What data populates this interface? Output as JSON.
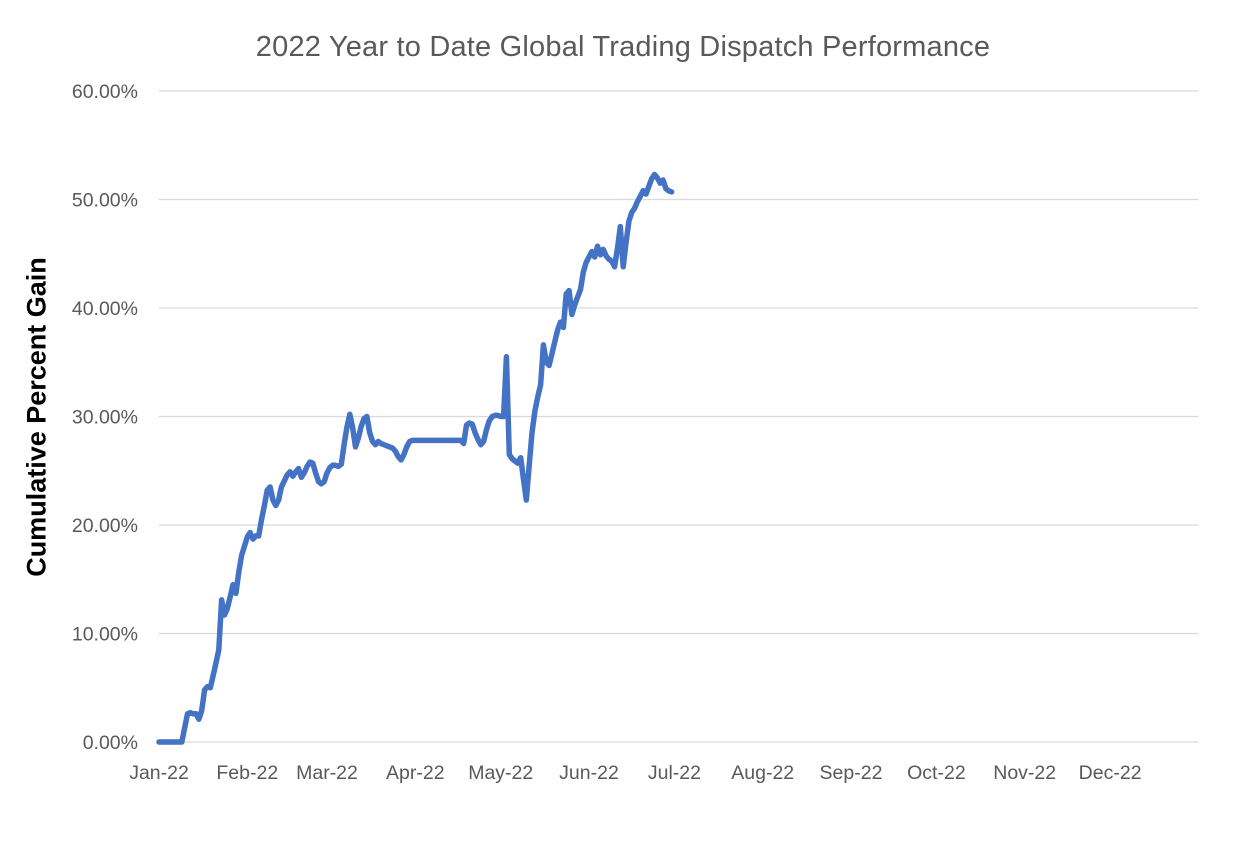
{
  "chart_data": {
    "type": "line",
    "title": "2022 Year to Date Global Trading Dispatch Performance",
    "ylabel": "Cumulative Percent Gain",
    "xlabel": "",
    "legend": "none",
    "grid": "horizontal-only",
    "ylim": [
      0,
      60
    ],
    "y_ticks": [
      0,
      10,
      20,
      30,
      40,
      50,
      60
    ],
    "y_tick_labels": [
      "0.00%",
      "10.00%",
      "20.00%",
      "30.00%",
      "40.00%",
      "50.00%",
      "60.00%"
    ],
    "x_axis_unit": "days-since-Jan-1-2022",
    "xlim_days": [
      0,
      365
    ],
    "x_tick_labels": [
      "Jan-22",
      "Feb-22",
      "Mar-22",
      "Apr-22",
      "May-22",
      "Jun-22",
      "Jul-22",
      "Aug-22",
      "Sep-22",
      "Oct-22",
      "Nov-22",
      "Dec-22"
    ],
    "x_tick_day_offsets": [
      0,
      31,
      59,
      90,
      120,
      151,
      181,
      212,
      243,
      273,
      304,
      334
    ],
    "colors": {
      "line": "#4472C4",
      "grid": "#D9D9D9",
      "tick_text": "#595959",
      "title_text": "#595959",
      "y_axis_title_text": "#000000"
    },
    "series": [
      {
        "name": "Cumulative Percent Gain",
        "points": [
          [
            0,
            0.0
          ],
          [
            2,
            0.0
          ],
          [
            4,
            0.0
          ],
          [
            6,
            0.0
          ],
          [
            8,
            0.0
          ],
          [
            10,
            2.6
          ],
          [
            11,
            2.7
          ],
          [
            12,
            2.6
          ],
          [
            13,
            2.6
          ],
          [
            14,
            2.1
          ],
          [
            15,
            2.9
          ],
          [
            16,
            4.8
          ],
          [
            17,
            5.1
          ],
          [
            18,
            5.0
          ],
          [
            19,
            6.1
          ],
          [
            20,
            7.3
          ],
          [
            21,
            8.5
          ],
          [
            22,
            13.1
          ],
          [
            23,
            11.7
          ],
          [
            24,
            12.3
          ],
          [
            25,
            13.4
          ],
          [
            26,
            14.5
          ],
          [
            27,
            13.7
          ],
          [
            28,
            15.6
          ],
          [
            29,
            17.2
          ],
          [
            31,
            18.9
          ],
          [
            32,
            19.3
          ],
          [
            33,
            18.7
          ],
          [
            34,
            19.0
          ],
          [
            35,
            19.0
          ],
          [
            36,
            20.5
          ],
          [
            37,
            21.8
          ],
          [
            38,
            23.2
          ],
          [
            39,
            23.5
          ],
          [
            40,
            22.3
          ],
          [
            41,
            21.8
          ],
          [
            42,
            22.3
          ],
          [
            43,
            23.5
          ],
          [
            45,
            24.6
          ],
          [
            46,
            24.9
          ],
          [
            47,
            24.5
          ],
          [
            48,
            24.9
          ],
          [
            49,
            25.2
          ],
          [
            50,
            24.4
          ],
          [
            51,
            24.8
          ],
          [
            52,
            25.4
          ],
          [
            53,
            25.8
          ],
          [
            54,
            25.7
          ],
          [
            55,
            24.8
          ],
          [
            56,
            24.0
          ],
          [
            57,
            23.8
          ],
          [
            58,
            24.0
          ],
          [
            59,
            24.8
          ],
          [
            60,
            25.3
          ],
          [
            61,
            25.5
          ],
          [
            62,
            25.5
          ],
          [
            63,
            25.4
          ],
          [
            64,
            25.6
          ],
          [
            65,
            27.4
          ],
          [
            66,
            29.0
          ],
          [
            67,
            30.2
          ],
          [
            68,
            29.0
          ],
          [
            69,
            27.2
          ],
          [
            70,
            28.0
          ],
          [
            71,
            29.1
          ],
          [
            72,
            29.8
          ],
          [
            73,
            30.0
          ],
          [
            74,
            28.5
          ],
          [
            75,
            27.7
          ],
          [
            76,
            27.4
          ],
          [
            77,
            27.7
          ],
          [
            78,
            27.5
          ],
          [
            79,
            27.4
          ],
          [
            80,
            27.3
          ],
          [
            81,
            27.2
          ],
          [
            82,
            27.1
          ],
          [
            83,
            26.8
          ],
          [
            84,
            26.3
          ],
          [
            85,
            26.0
          ],
          [
            86,
            26.5
          ],
          [
            87,
            27.2
          ],
          [
            88,
            27.7
          ],
          [
            89,
            27.8
          ],
          [
            91,
            27.8
          ],
          [
            93,
            27.8
          ],
          [
            95,
            27.8
          ],
          [
            97,
            27.8
          ],
          [
            99,
            27.8
          ],
          [
            101,
            27.8
          ],
          [
            103,
            27.8
          ],
          [
            105,
            27.8
          ],
          [
            106,
            27.8
          ],
          [
            107,
            27.5
          ],
          [
            108,
            29.2
          ],
          [
            109,
            29.4
          ],
          [
            110,
            29.3
          ],
          [
            111,
            28.5
          ],
          [
            112,
            27.9
          ],
          [
            113,
            27.4
          ],
          [
            114,
            27.7
          ],
          [
            115,
            28.8
          ],
          [
            116,
            29.6
          ],
          [
            117,
            30.0
          ],
          [
            118,
            30.1
          ],
          [
            119,
            30.1
          ],
          [
            120,
            30.0
          ],
          [
            121,
            30.0
          ],
          [
            122,
            35.5
          ],
          [
            123,
            26.5
          ],
          [
            124,
            26.1
          ],
          [
            125,
            25.9
          ],
          [
            126,
            25.7
          ],
          [
            127,
            26.2
          ],
          [
            128,
            24.2
          ],
          [
            129,
            22.3
          ],
          [
            130,
            25.5
          ],
          [
            131,
            28.5
          ],
          [
            132,
            30.5
          ],
          [
            133,
            31.8
          ],
          [
            134,
            32.9
          ],
          [
            135,
            36.6
          ],
          [
            136,
            35.0
          ],
          [
            137,
            34.7
          ],
          [
            138,
            35.8
          ],
          [
            139,
            36.9
          ],
          [
            140,
            38.0
          ],
          [
            141,
            38.7
          ],
          [
            142,
            38.2
          ],
          [
            143,
            41.3
          ],
          [
            144,
            41.6
          ],
          [
            145,
            39.4
          ],
          [
            146,
            40.3
          ],
          [
            147,
            41.0
          ],
          [
            148,
            41.7
          ],
          [
            149,
            43.3
          ],
          [
            150,
            44.2
          ],
          [
            151,
            44.7
          ],
          [
            152,
            45.2
          ],
          [
            153,
            44.7
          ],
          [
            154,
            45.7
          ],
          [
            155,
            44.9
          ],
          [
            156,
            45.4
          ],
          [
            157,
            44.8
          ],
          [
            158,
            44.5
          ],
          [
            159,
            44.3
          ],
          [
            160,
            43.8
          ],
          [
            161,
            45.5
          ],
          [
            162,
            47.5
          ],
          [
            163,
            43.8
          ],
          [
            164,
            46.0
          ],
          [
            165,
            48.0
          ],
          [
            166,
            48.8
          ],
          [
            167,
            49.2
          ],
          [
            168,
            49.8
          ],
          [
            169,
            50.3
          ],
          [
            170,
            50.8
          ],
          [
            171,
            50.5
          ],
          [
            172,
            51.2
          ],
          [
            173,
            51.9
          ],
          [
            174,
            52.3
          ],
          [
            175,
            52.0
          ],
          [
            176,
            51.5
          ],
          [
            177,
            51.8
          ],
          [
            178,
            51.0
          ],
          [
            179,
            50.8
          ],
          [
            180,
            50.7
          ]
        ]
      }
    ]
  }
}
